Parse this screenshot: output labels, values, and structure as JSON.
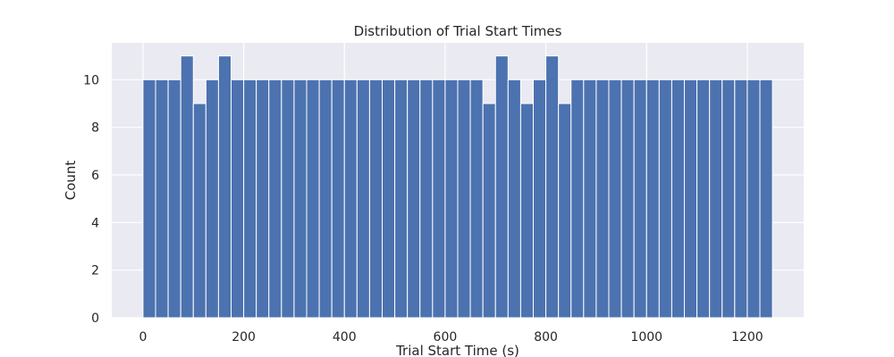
{
  "chart_data": {
    "type": "bar",
    "title": "Distribution of Trial Start Times",
    "xlabel": "Trial Start Time (s)",
    "ylabel": "Count",
    "xlim": [
      -62,
      1312
    ],
    "ylim": [
      0,
      11.55
    ],
    "xticks": [
      0,
      200,
      400,
      600,
      800,
      1000,
      1200
    ],
    "yticks": [
      0,
      2,
      4,
      6,
      8,
      10
    ],
    "grid": true,
    "bin_start": 0,
    "bin_width": 25,
    "counts": [
      10,
      10,
      10,
      11,
      9,
      10,
      11,
      10,
      10,
      10,
      10,
      10,
      10,
      10,
      10,
      10,
      10,
      10,
      10,
      10,
      10,
      10,
      10,
      10,
      10,
      10,
      10,
      9,
      11,
      10,
      9,
      10,
      11,
      9,
      10,
      10,
      10,
      10,
      10,
      10,
      10,
      10,
      10,
      10,
      10,
      10,
      10,
      10,
      10,
      10
    ],
    "colors": {
      "bar": "#4c72b0",
      "background": "#eaeaf2",
      "grid": "#ffffff"
    }
  }
}
